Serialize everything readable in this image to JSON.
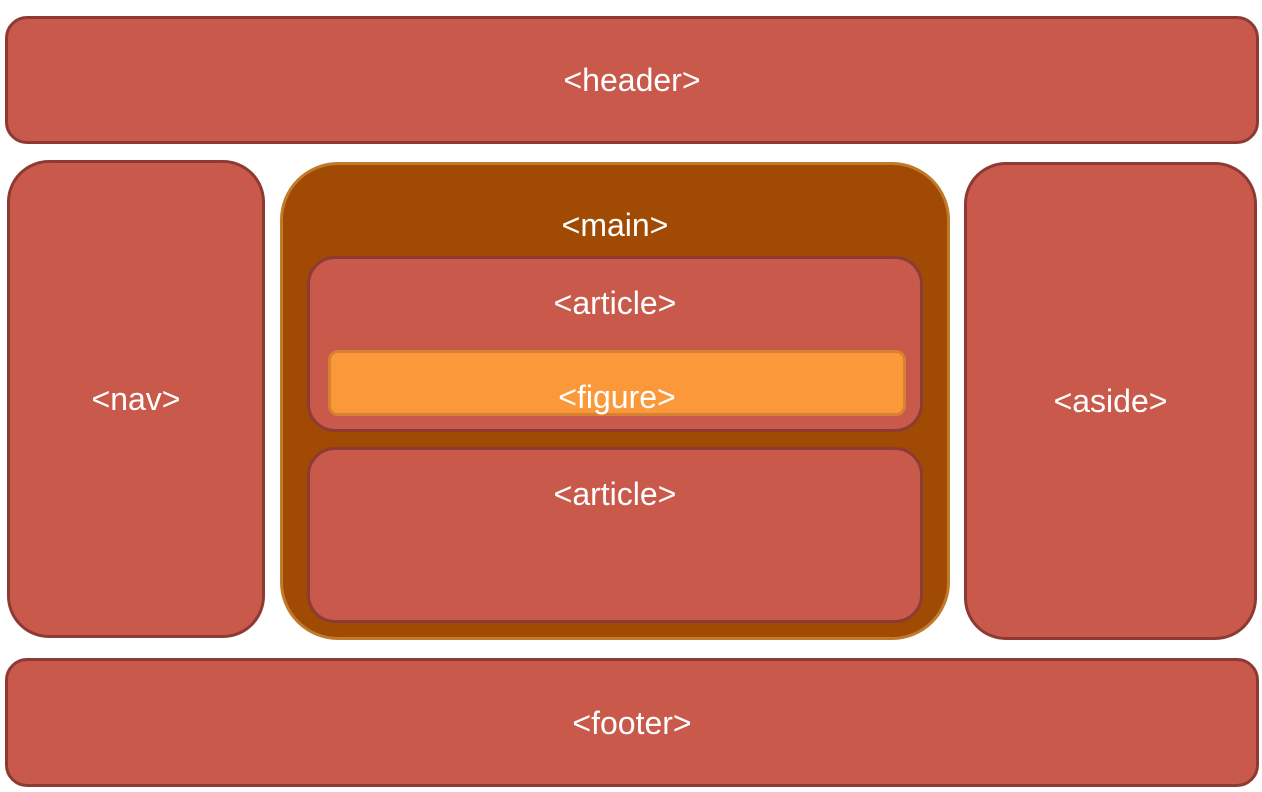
{
  "diagram": {
    "header": {
      "label": "<header>"
    },
    "nav": {
      "label": "<nav>"
    },
    "main": {
      "label": "<main>",
      "article_top": {
        "label": "<article>",
        "figure": {
          "label": "<figure>"
        }
      },
      "article_bottom": {
        "label": "<article>"
      }
    },
    "aside": {
      "label": "<aside>"
    },
    "footer": {
      "label": "<footer>"
    }
  },
  "colors": {
    "section_fill": "#c9594a",
    "section_border": "#8e3a34",
    "main_fill": "#a04a04",
    "main_border": "#c07a2a",
    "figure_fill": "#fb993a",
    "text": "#ffffff"
  }
}
